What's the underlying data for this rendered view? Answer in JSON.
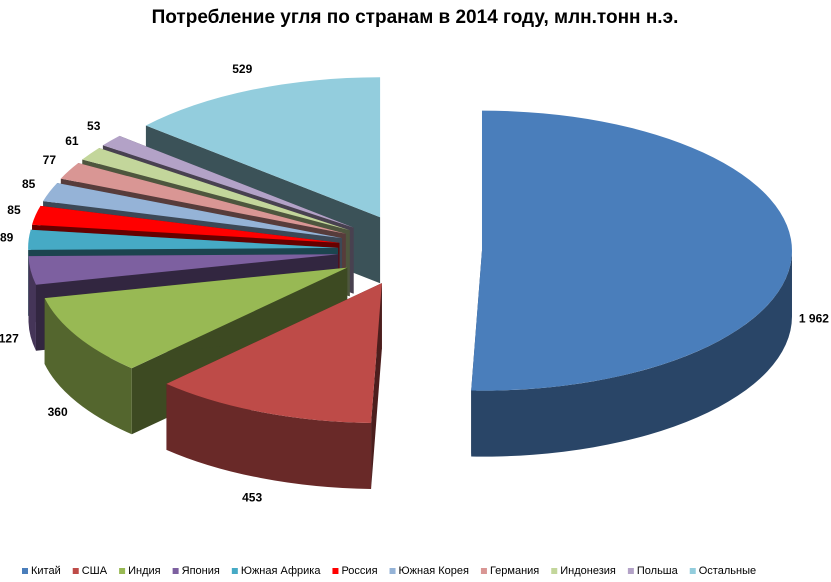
{
  "chart_data": {
    "type": "pie3d",
    "title": "Потребление угля по странам в 2014 году, млн.тонн н.э.",
    "categories": [
      "Китай",
      "США",
      "Индия",
      "Япония",
      "Южная Африка",
      "Россия",
      "Южная Корея",
      "Германия",
      "Индонезия",
      "Польша",
      "Остальные"
    ],
    "values": [
      1962,
      453,
      360,
      127,
      89,
      85,
      85,
      77,
      61,
      53,
      529
    ],
    "value_labels": [
      "1 962",
      "453",
      "360",
      "127",
      "89",
      "85",
      "85",
      "77",
      "61",
      "53",
      "529"
    ],
    "colors": [
      "#4a7ebb",
      "#be4b48",
      "#98b954",
      "#7d60a0",
      "#46aac5",
      "#ff0000",
      "#95b3d7",
      "#d99694",
      "#c3d69b",
      "#b3a2c7",
      "#93cddd"
    ],
    "legend": "bottom"
  }
}
